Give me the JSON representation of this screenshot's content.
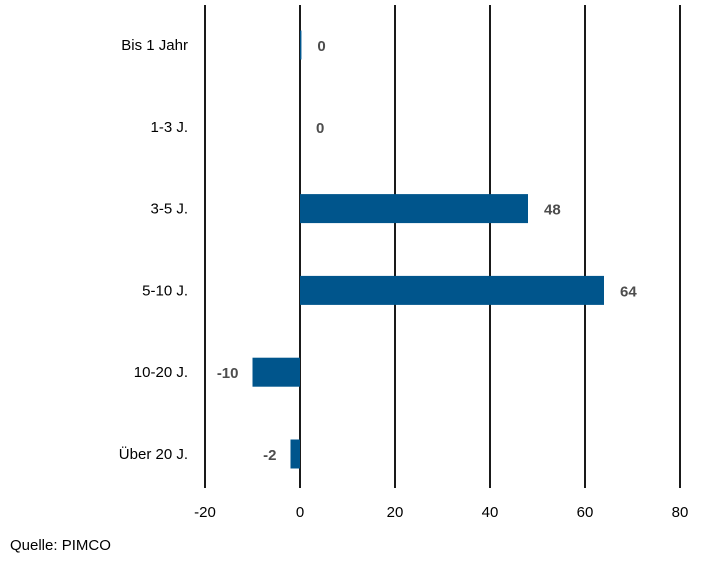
{
  "chart_data": {
    "type": "bar",
    "orientation": "horizontal",
    "categories": [
      "Bis 1 Jahr",
      "1-3 J.",
      "3-5 J.",
      "5-10 J.",
      "10-20 J.",
      "Über 20 J."
    ],
    "values": [
      0.3,
      0,
      48,
      64,
      -10,
      -2
    ],
    "data_labels": [
      "0",
      "0",
      "48",
      "64",
      "-10",
      "-2"
    ],
    "xlim": [
      -20,
      80
    ],
    "xticks": [
      -20,
      0,
      20,
      40,
      60,
      80
    ],
    "xtick_labels": [
      "-20",
      "0",
      "20",
      "40",
      "60",
      "80"
    ],
    "grid": "vertical",
    "legend": "none",
    "title": "",
    "xlabel": "",
    "ylabel": "",
    "bar_color": "#00558c",
    "label_color": "#4d4d4d"
  },
  "source": "Quelle: PIMCO"
}
